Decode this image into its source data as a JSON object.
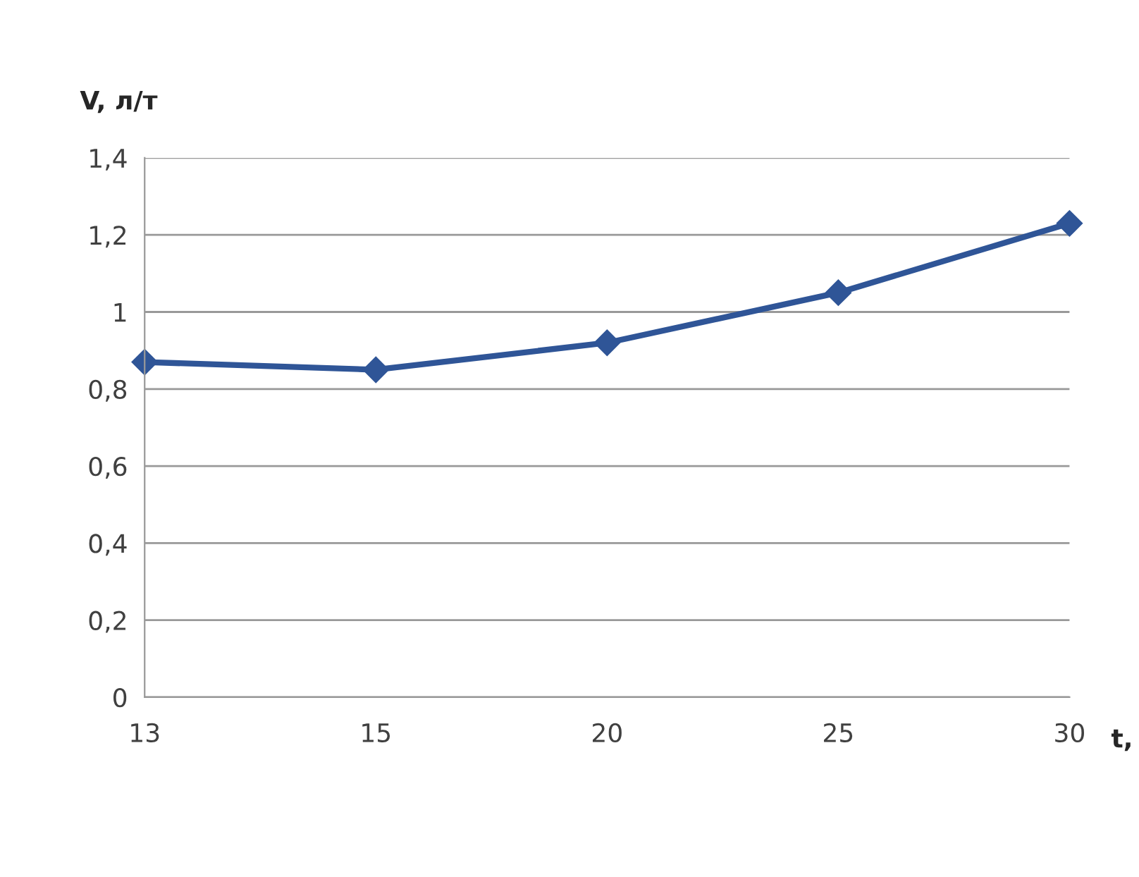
{
  "chart_data": {
    "type": "line",
    "xlabel": "t,",
    "ylabel": "V, л/т",
    "categories": [
      "13",
      "15",
      "20",
      "25",
      "30"
    ],
    "series": [
      {
        "color": "#2f5597",
        "values": [
          0.87,
          0.85,
          0.92,
          1.05,
          1.23
        ]
      }
    ],
    "ylim": [
      0,
      1.4
    ],
    "yticks": [
      {
        "value": 0,
        "label": "0"
      },
      {
        "value": 0.2,
        "label": "0,2"
      },
      {
        "value": 0.4,
        "label": "0,4"
      },
      {
        "value": 0.6,
        "label": "0,6"
      },
      {
        "value": 0.8,
        "label": "0,8"
      },
      {
        "value": 1,
        "label": "1"
      },
      {
        "value": 1.2,
        "label": "1,2"
      },
      {
        "value": 1.4,
        "label": "1,4"
      }
    ],
    "grid": "y",
    "marker": "diamond",
    "line_style": "solid"
  }
}
